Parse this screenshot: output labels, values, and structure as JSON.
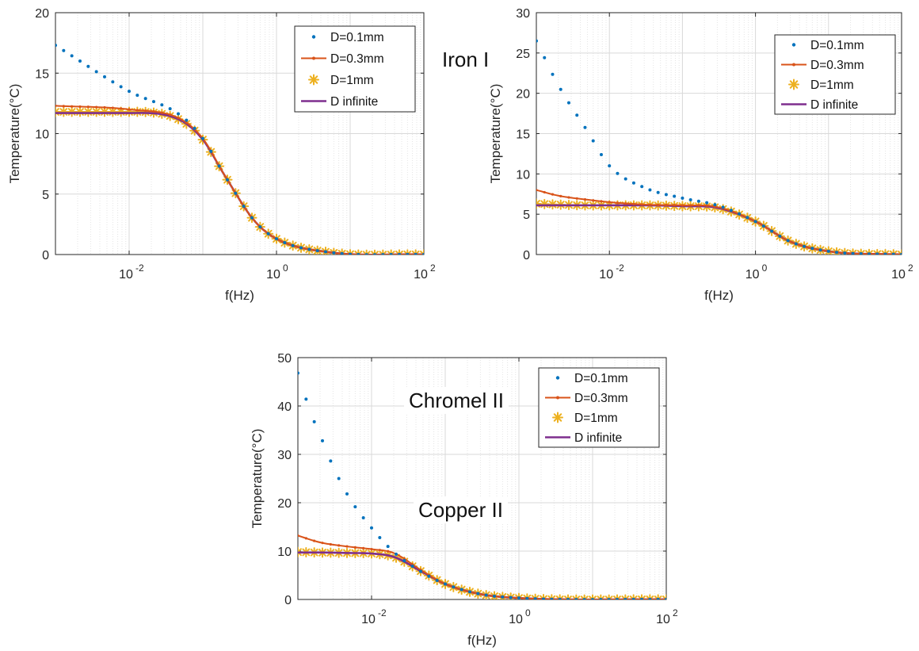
{
  "annotations": {
    "iron": "Iron I",
    "chromel": "Chromel II",
    "copper": "Copper II"
  },
  "colors": {
    "d01": "#0072BD",
    "d03": "#D95319",
    "d1": "#EDB120",
    "dinf": "#7E2F8E",
    "grid": "#d9d9d9",
    "axis": "#262626"
  },
  "chart_data": [
    {
      "type": "line",
      "x_scale": "log",
      "xlim": [
        0.001,
        100
      ],
      "ylim": [
        0,
        20
      ],
      "xticks": [
        0.01,
        1,
        100
      ],
      "xtick_labels": [
        [
          "10",
          "-2"
        ],
        [
          "10",
          "0"
        ],
        [
          "10",
          "2"
        ]
      ],
      "yticks": [
        0,
        5,
        10,
        15,
        20
      ],
      "xlabel": "f(Hz)",
      "ylabel": "Temperature(°C)",
      "grid": true,
      "legend_position": "top-right",
      "series": [
        {
          "name": "D=0.1mm",
          "marker": "dot",
          "x": [
            0.001,
            0.01,
            0.05,
            0.1,
            0.2,
            0.5,
            1,
            5,
            100
          ],
          "y": [
            17.3,
            13.5,
            11.5,
            9.6,
            6.5,
            2.8,
            1.3,
            0.2,
            0.0
          ]
        },
        {
          "name": "D=0.3mm",
          "marker": "dot-line",
          "x": [
            0.001,
            0.01,
            0.05,
            0.1,
            0.2,
            0.5,
            1,
            5,
            100
          ],
          "y": [
            12.3,
            12.0,
            11.2,
            9.6,
            6.5,
            2.8,
            1.3,
            0.2,
            0.0
          ]
        },
        {
          "name": "D=1mm",
          "marker": "star",
          "x": [
            0.001,
            0.01,
            0.05,
            0.1,
            0.2,
            0.5,
            1,
            5,
            100
          ],
          "y": [
            11.8,
            11.8,
            11.1,
            9.5,
            6.5,
            2.8,
            1.3,
            0.2,
            0.0
          ]
        },
        {
          "name": "D infinite",
          "marker": "line",
          "x": [
            0.001,
            0.01,
            0.05,
            0.1,
            0.2,
            0.5,
            1,
            5,
            100
          ],
          "y": [
            11.7,
            11.7,
            11.1,
            9.5,
            6.5,
            2.8,
            1.3,
            0.2,
            0.0
          ]
        }
      ]
    },
    {
      "type": "line",
      "x_scale": "log",
      "xlim": [
        0.001,
        100
      ],
      "ylim": [
        0,
        30
      ],
      "xticks": [
        0.01,
        1,
        100
      ],
      "xtick_labels": [
        [
          "10",
          "-2"
        ],
        [
          "10",
          "0"
        ],
        [
          "10",
          "2"
        ]
      ],
      "yticks": [
        0,
        5,
        10,
        15,
        20,
        25,
        30
      ],
      "xlabel": "f(Hz)",
      "ylabel": "Temperature(°C)",
      "grid": true,
      "legend_position": "top-right",
      "series": [
        {
          "name": "D=0.1mm",
          "marker": "dot",
          "x": [
            0.001,
            0.002,
            0.005,
            0.01,
            0.03,
            0.1,
            0.3,
            1,
            3,
            10,
            100
          ],
          "y": [
            26.5,
            21.0,
            15.3,
            11.0,
            8.3,
            7.0,
            6.1,
            4.1,
            1.6,
            0.4,
            0.0
          ]
        },
        {
          "name": "D=0.3mm",
          "marker": "dot-line",
          "x": [
            0.001,
            0.002,
            0.005,
            0.01,
            0.03,
            0.1,
            0.3,
            1,
            3,
            10,
            100
          ],
          "y": [
            8.0,
            7.3,
            6.8,
            6.5,
            6.2,
            6.1,
            5.9,
            4.1,
            1.6,
            0.4,
            0.0
          ]
        },
        {
          "name": "D=1mm",
          "marker": "star",
          "x": [
            0.001,
            0.002,
            0.005,
            0.01,
            0.03,
            0.1,
            0.3,
            1,
            3,
            10,
            100
          ],
          "y": [
            6.3,
            6.2,
            6.1,
            6.1,
            6.1,
            6.0,
            5.8,
            4.1,
            1.6,
            0.4,
            0.0
          ]
        },
        {
          "name": "D infinite",
          "marker": "line",
          "x": [
            0.001,
            0.002,
            0.005,
            0.01,
            0.03,
            0.1,
            0.3,
            1,
            3,
            10,
            100
          ],
          "y": [
            6.1,
            6.1,
            6.1,
            6.1,
            6.1,
            6.0,
            5.8,
            4.1,
            1.6,
            0.4,
            0.0
          ]
        }
      ]
    },
    {
      "type": "line",
      "x_scale": "log",
      "xlim": [
        0.001,
        100
      ],
      "ylim": [
        0,
        50
      ],
      "xticks": [
        0.01,
        1,
        100
      ],
      "xtick_labels": [
        [
          "10",
          "-2"
        ],
        [
          "10",
          "0"
        ],
        [
          "10",
          "2"
        ]
      ],
      "yticks": [
        0,
        10,
        20,
        30,
        40,
        50
      ],
      "xlabel": "f(Hz)",
      "ylabel": "Temperature(°C)",
      "grid": true,
      "legend_position": "top-right",
      "series": [
        {
          "name": "D=0.1mm",
          "marker": "dot",
          "x": [
            0.001,
            0.0015,
            0.002,
            0.003,
            0.005,
            0.01,
            0.02,
            0.05,
            0.1,
            0.3,
            1,
            100
          ],
          "y": [
            46.8,
            38.5,
            34.0,
            27.5,
            21.0,
            14.8,
            9.8,
            5.5,
            3.2,
            1.1,
            0.3,
            0.0
          ]
        },
        {
          "name": "D=0.3mm",
          "marker": "dot-line",
          "x": [
            0.001,
            0.002,
            0.005,
            0.01,
            0.02,
            0.05,
            0.1,
            0.3,
            1,
            100
          ],
          "y": [
            13.2,
            11.8,
            10.9,
            10.4,
            9.6,
            5.8,
            3.2,
            1.1,
            0.3,
            0.0
          ]
        },
        {
          "name": "D=1mm",
          "marker": "star",
          "x": [
            0.001,
            0.002,
            0.005,
            0.01,
            0.02,
            0.05,
            0.1,
            0.3,
            1,
            100
          ],
          "y": [
            9.8,
            9.7,
            9.6,
            9.5,
            8.8,
            5.6,
            3.2,
            1.1,
            0.3,
            0.0
          ]
        },
        {
          "name": "D infinite",
          "marker": "line",
          "x": [
            0.001,
            0.002,
            0.005,
            0.01,
            0.02,
            0.05,
            0.1,
            0.3,
            1,
            100
          ],
          "y": [
            9.7,
            9.7,
            9.6,
            9.5,
            8.8,
            5.6,
            3.2,
            1.1,
            0.3,
            0.0
          ]
        }
      ]
    }
  ]
}
